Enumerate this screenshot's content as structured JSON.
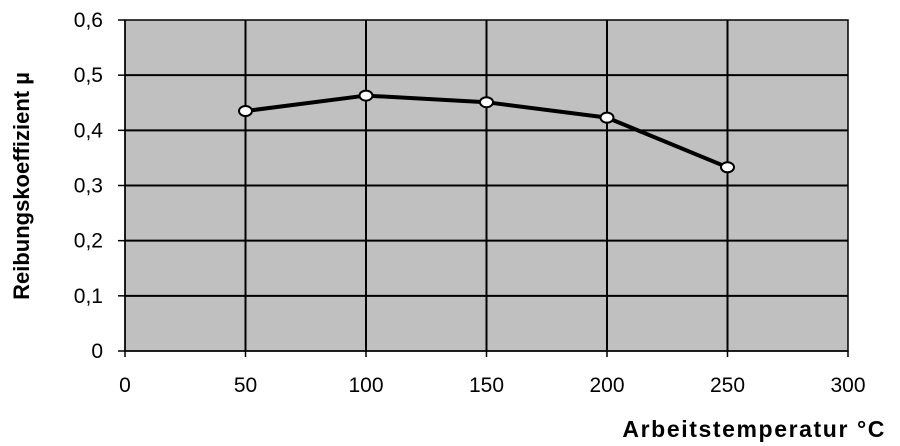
{
  "chart_data": {
    "type": "line",
    "title": "",
    "xlabel": "Arbeitstemperatur °C",
    "ylabel": "Reibungskoeffizient µ",
    "x_ticks": [
      "0",
      "50",
      "100",
      "150",
      "200",
      "250",
      "300"
    ],
    "y_ticks": [
      "0",
      "0,1",
      "0,2",
      "0,3",
      "0,4",
      "0,5",
      "0,6"
    ],
    "xlim": [
      0,
      300
    ],
    "ylim": [
      0,
      0.6
    ],
    "grid": true,
    "legend": "none",
    "series": [
      {
        "x": [
          50,
          100,
          150,
          200,
          250
        ],
        "y": [
          0.435,
          0.463,
          0.451,
          0.423,
          0.333
        ]
      }
    ],
    "colors": {
      "plot_background": "#c0c0c0",
      "grid": "#000000",
      "line": "#000000",
      "marker_fill": "#ffffff"
    }
  }
}
